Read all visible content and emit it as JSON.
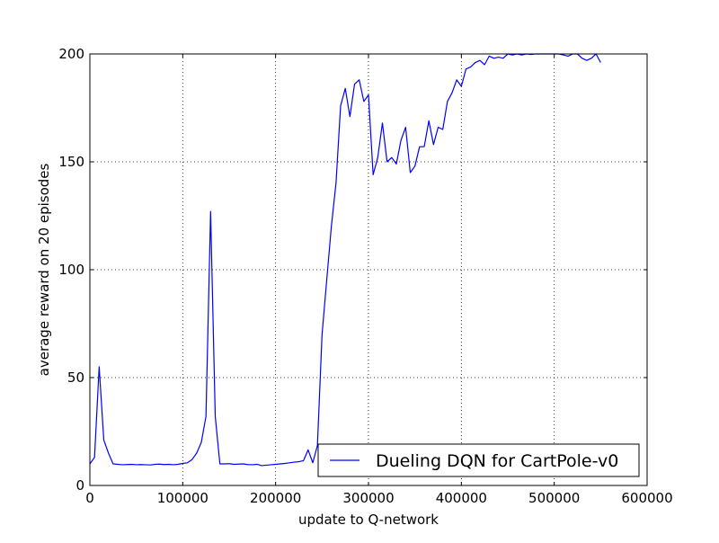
{
  "chart_data": {
    "type": "line",
    "title": "",
    "xlabel": "update to Q-network",
    "ylabel": "average reward on 20 episodes",
    "xlim": [
      0,
      600000
    ],
    "ylim": [
      0,
      200
    ],
    "xticks": [
      0,
      100000,
      200000,
      300000,
      400000,
      500000,
      600000
    ],
    "xtick_labels": [
      "0",
      "100000",
      "200000",
      "300000",
      "400000",
      "500000",
      "600000"
    ],
    "yticks": [
      0,
      50,
      100,
      150,
      200
    ],
    "ytick_labels": [
      "0",
      "50",
      "100",
      "150",
      "200"
    ],
    "grid": true,
    "legend_position": "lower-right",
    "series": [
      {
        "name": "Dueling DQN for CartPole-v0",
        "color": "#0000ff",
        "x": [
          0,
          5000,
          10000,
          15000,
          20000,
          25000,
          30000,
          35000,
          40000,
          45000,
          50000,
          55000,
          60000,
          65000,
          70000,
          75000,
          80000,
          85000,
          90000,
          95000,
          100000,
          105000,
          110000,
          115000,
          120000,
          125000,
          130000,
          135000,
          140000,
          145000,
          150000,
          155000,
          160000,
          165000,
          170000,
          175000,
          180000,
          185000,
          190000,
          195000,
          200000,
          205000,
          210000,
          215000,
          220000,
          225000,
          230000,
          235000,
          240000,
          245000,
          250000,
          255000,
          260000,
          265000,
          270000,
          275000,
          280000,
          285000,
          290000,
          295000,
          300000,
          305000,
          310000,
          315000,
          320000,
          325000,
          330000,
          335000,
          340000,
          345000,
          350000,
          355000,
          360000,
          365000,
          370000,
          375000,
          380000,
          385000,
          390000,
          395000,
          400000,
          405000,
          410000,
          415000,
          420000,
          425000,
          430000,
          435000,
          440000,
          445000,
          450000,
          455000,
          460000,
          465000,
          470000,
          475000,
          480000,
          485000,
          490000,
          495000,
          500000,
          505000,
          510000,
          515000,
          520000,
          525000,
          530000,
          535000,
          540000,
          545000,
          550000
        ],
        "y": [
          10,
          13,
          55,
          21,
          15,
          10,
          9.8,
          9.6,
          9.7,
          9.8,
          9.6,
          9.7,
          9.6,
          9.5,
          9.8,
          9.9,
          9.7,
          9.8,
          9.6,
          9.8,
          10.2,
          10.5,
          12,
          15,
          20,
          32,
          127,
          32,
          10,
          10,
          10.1,
          9.8,
          9.9,
          10,
          9.7,
          9.6,
          9.8,
          9.2,
          9.4,
          9.6,
          9.8,
          10,
          10.2,
          10.5,
          10.8,
          11,
          11.5,
          16.5,
          10.5,
          18.5,
          70,
          95,
          120,
          140,
          176,
          184,
          171,
          186,
          188,
          178,
          181,
          144,
          152,
          168,
          150,
          152,
          149,
          160,
          166,
          145,
          148,
          157,
          157,
          169,
          158,
          166,
          165,
          178,
          182,
          188,
          185,
          193,
          194,
          196,
          197,
          195,
          199,
          198,
          198.5,
          198,
          200,
          199.5,
          200,
          199.5,
          200,
          199.8,
          200,
          200,
          200,
          200,
          200,
          200,
          199.5,
          199,
          200,
          200,
          198,
          197,
          198,
          200,
          196
        ]
      }
    ]
  }
}
